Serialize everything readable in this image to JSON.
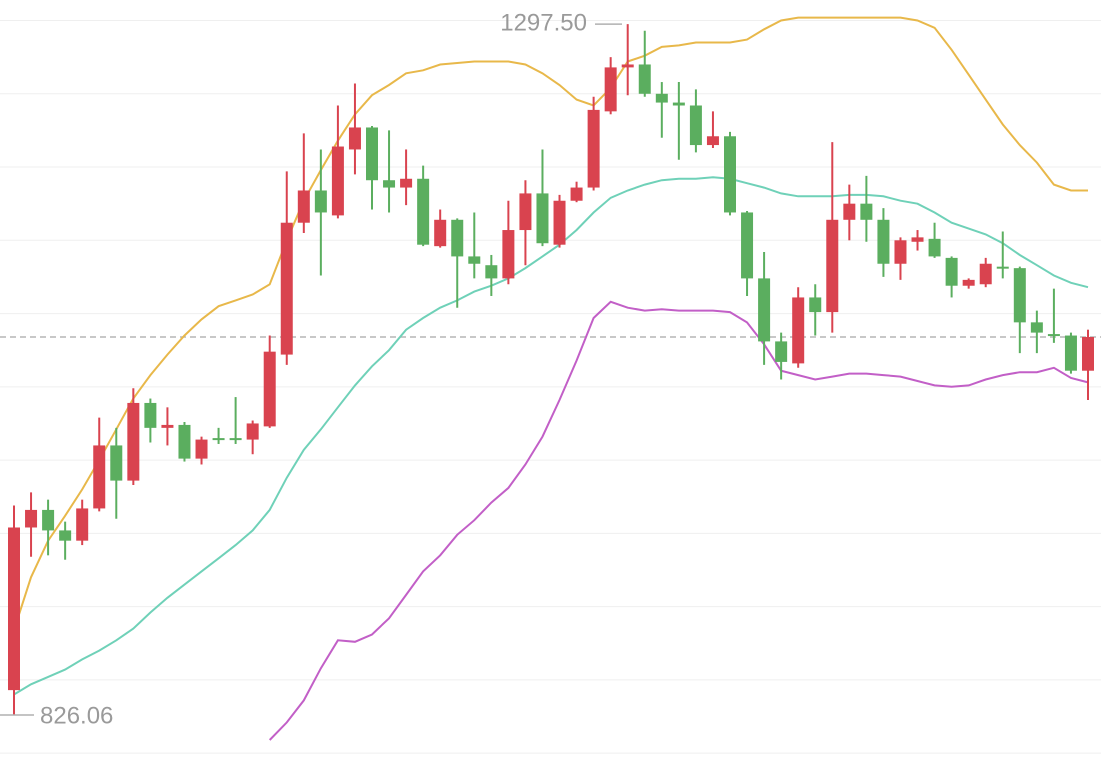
{
  "chart_data": {
    "type": "candlestick",
    "ylim": [
      796,
      1314
    ],
    "gridlines": [
      800,
      850,
      900,
      950,
      1000,
      1050,
      1100,
      1150,
      1200,
      1250,
      1300
    ],
    "up_color": "#d9434f",
    "down_color": "#5bae5f",
    "candles": {
      "open": [
        843,
        954,
        966,
        952,
        945,
        967,
        1010,
        986,
        1039,
        1022,
        1024,
        1001,
        1015,
        1015,
        1014,
        1023,
        1072,
        1162,
        1184,
        1167,
        1212,
        1227,
        1191,
        1186,
        1192,
        1146,
        1164,
        1139,
        1133,
        1124,
        1157,
        1182,
        1147,
        1177,
        1186,
        1238,
        1268,
        1270,
        1250,
        1244,
        1242,
        1215,
        1221,
        1169,
        1124,
        1081,
        1066,
        1111,
        1101,
        1164,
        1175,
        1164,
        1134,
        1149,
        1151,
        1138,
        1119,
        1120,
        1132,
        1131,
        1094,
        1086,
        1085,
        1061
      ],
      "high": [
        969,
        978,
        973,
        958,
        973,
        1029,
        1022,
        1049,
        1042,
        1036,
        1026,
        1016,
        1022,
        1043,
        1027,
        1085,
        1197,
        1223,
        1212,
        1242,
        1257,
        1228,
        1225,
        1212,
        1201,
        1171,
        1165,
        1169,
        1140,
        1177,
        1191,
        1212,
        1181,
        1190,
        1248,
        1275,
        1297.5,
        1293,
        1258,
        1258,
        1253,
        1238,
        1224,
        1170,
        1142,
        1087,
        1118,
        1120,
        1217,
        1188,
        1194,
        1172,
        1152,
        1157,
        1162,
        1139,
        1124,
        1138,
        1156,
        1132,
        1102,
        1117,
        1087,
        1089
      ],
      "low": [
        826.06,
        934,
        935,
        932,
        942,
        965,
        960,
        983,
        1012,
        1010,
        999,
        997,
        1011,
        1011,
        1004,
        1022,
        1065,
        1155,
        1126,
        1165,
        1195,
        1171,
        1169,
        1174,
        1146,
        1145,
        1104,
        1124,
        1112,
        1120,
        1133,
        1146,
        1145,
        1176,
        1184,
        1236,
        1249,
        1248,
        1220,
        1205,
        1210,
        1213,
        1167,
        1112,
        1065,
        1055,
        1063,
        1085,
        1087,
        1150,
        1149,
        1125,
        1123,
        1143,
        1138,
        1111,
        1117,
        1118,
        1124,
        1073,
        1073,
        1080,
        1059,
        1041
      ],
      "close": [
        954,
        966,
        952,
        945,
        967,
        1010,
        986,
        1039,
        1022,
        1024,
        1001,
        1014,
        1014,
        1014,
        1025,
        1074,
        1162,
        1184,
        1169,
        1214,
        1227,
        1191,
        1186,
        1192,
        1147,
        1164,
        1139,
        1134,
        1124,
        1157,
        1182,
        1148,
        1177,
        1186,
        1239,
        1268,
        1270,
        1250,
        1244,
        1242,
        1215,
        1221,
        1169,
        1124,
        1081,
        1067,
        1111,
        1101,
        1164,
        1175,
        1164,
        1134,
        1150,
        1152,
        1139,
        1119,
        1123,
        1134,
        1131,
        1094,
        1087,
        1085,
        1061,
        1084
      ]
    },
    "bands": [
      {
        "color": "#e8b84a",
        "values": [
          884,
          920,
          945,
          962,
          980,
          1000,
          1021,
          1042,
          1058,
          1072,
          1085,
          1096,
          1105,
          1109,
          1113,
          1120,
          1150,
          1177,
          1198,
          1218,
          1236,
          1249,
          1256,
          1264,
          1266,
          1270,
          1271,
          1272,
          1272,
          1272,
          1270,
          1264,
          1256,
          1246,
          1242,
          1254,
          1272,
          1276,
          1282,
          1283,
          1285,
          1285,
          1285,
          1287,
          1294,
          1300,
          1302,
          1302,
          1302,
          1302,
          1302,
          1302,
          1302,
          1300,
          1295,
          1280,
          1263,
          1246,
          1229,
          1215,
          1203,
          1188,
          1184,
          1184
        ]
      },
      {
        "color": "#6fd1b8",
        "values": [
          840,
          847,
          852,
          857,
          864,
          870,
          877,
          885,
          896,
          906,
          915,
          924,
          933,
          942,
          952,
          966,
          988,
          1007,
          1021,
          1036,
          1051,
          1064,
          1075,
          1089,
          1097,
          1104,
          1109,
          1115,
          1119,
          1124,
          1131,
          1139,
          1147,
          1157,
          1169,
          1179,
          1184,
          1188,
          1191,
          1192,
          1192,
          1193,
          1192,
          1189,
          1186,
          1182,
          1180,
          1180,
          1180,
          1181,
          1181,
          1180,
          1177,
          1175,
          1169,
          1162,
          1158,
          1154,
          1148,
          1140,
          1133,
          1126,
          1121,
          1118
        ]
      },
      {
        "color": "#c25fc7",
        "values": [
          null,
          null,
          null,
          null,
          null,
          null,
          null,
          null,
          null,
          null,
          null,
          null,
          null,
          null,
          null,
          809,
          821,
          836,
          858,
          877,
          876,
          881,
          892,
          908,
          924,
          935,
          949,
          959,
          971,
          981,
          997,
          1016,
          1041,
          1068,
          1097,
          1108,
          1104,
          1102,
          1103,
          1102,
          1102,
          1102,
          1101,
          1094,
          1079,
          1061,
          1058,
          1055,
          1057,
          1059,
          1059,
          1058,
          1057,
          1054,
          1051,
          1050,
          1051,
          1055,
          1058,
          1060,
          1060,
          1063,
          1056,
          1053
        ]
      }
    ],
    "last_price": 1084,
    "max_label": {
      "value": 1297.5,
      "label": "1297.50"
    },
    "min_label": {
      "value": 826.06,
      "label": "826.06"
    }
  }
}
